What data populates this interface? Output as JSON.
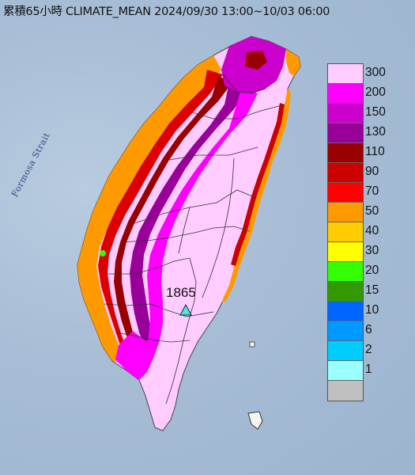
{
  "title": "累積65小時 CLIMATE_MEAN 2024/09/30 13:00~10/03 06:00",
  "sea_label": "Formosa Strait",
  "peak": {
    "value": "1865",
    "marker": "triangle-marker"
  },
  "legend": {
    "name": "rainfall-scale",
    "levels": [
      {
        "label": "300",
        "color": "#ffccff"
      },
      {
        "label": "200",
        "color": "#ff00ff"
      },
      {
        "label": "150",
        "color": "#cc00cc"
      },
      {
        "label": "130",
        "color": "#990099"
      },
      {
        "label": "110",
        "color": "#990000"
      },
      {
        "label": "90",
        "color": "#cc0000"
      },
      {
        "label": "70",
        "color": "#ff0000"
      },
      {
        "label": "50",
        "color": "#ff9900"
      },
      {
        "label": "40",
        "color": "#ffcc00"
      },
      {
        "label": "30",
        "color": "#ffff00"
      },
      {
        "label": "20",
        "color": "#33ff00"
      },
      {
        "label": "15",
        "color": "#339900"
      },
      {
        "label": "10",
        "color": "#0066ff"
      },
      {
        "label": "6",
        "color": "#0099ff"
      },
      {
        "label": "2",
        "color": "#00ccff"
      },
      {
        "label": "1",
        "color": "#99ffff"
      },
      {
        "label": "",
        "color": "#c0c0c0"
      }
    ]
  }
}
